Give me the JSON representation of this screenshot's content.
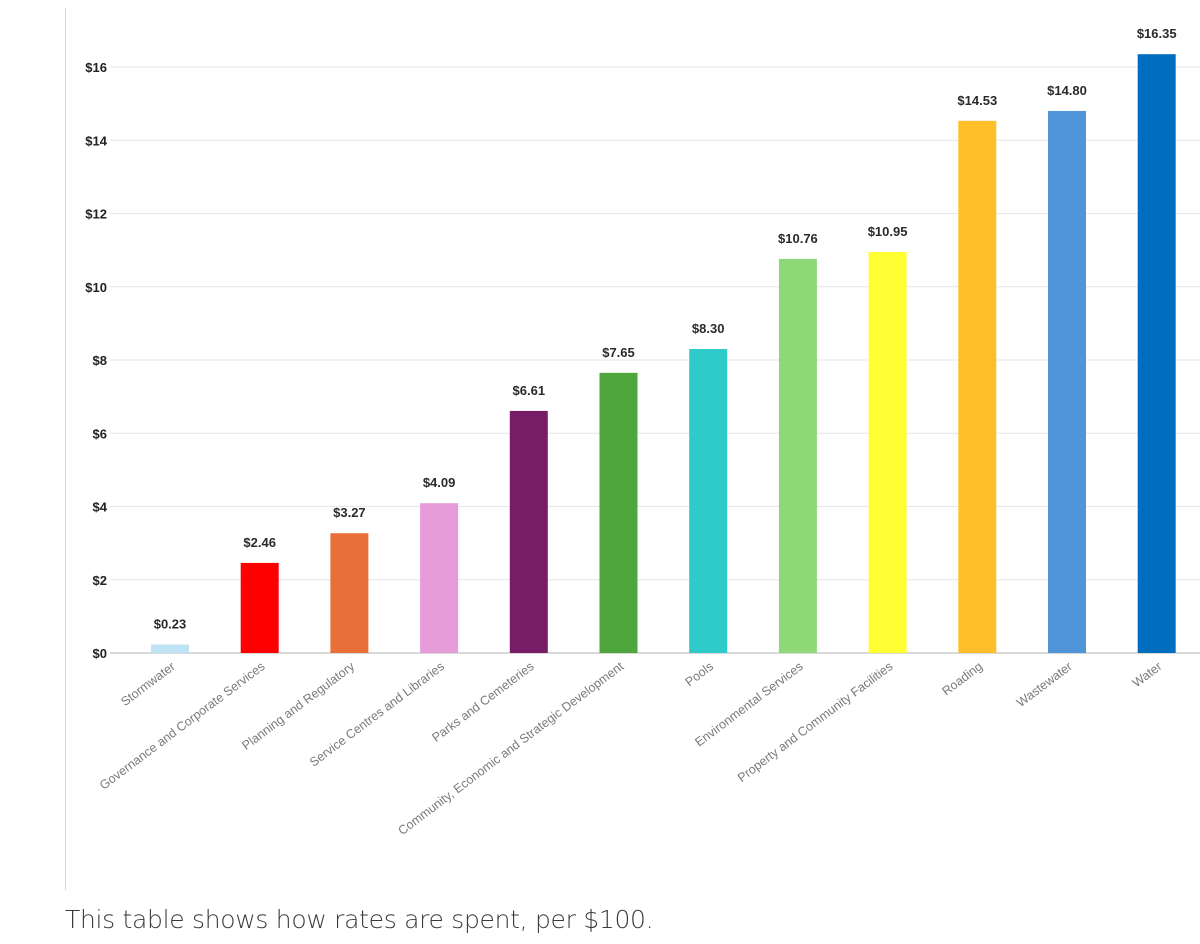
{
  "chart_data": {
    "type": "bar",
    "title": "",
    "xlabel": "",
    "ylabel": "",
    "ylim": [
      0,
      17
    ],
    "yticks": [
      0,
      2,
      4,
      6,
      8,
      10,
      12,
      14,
      16
    ],
    "ytick_labels": [
      "$0",
      "$2",
      "$4",
      "$6",
      "$8",
      "$10",
      "$12",
      "$14",
      "$16"
    ],
    "grid": true,
    "categories": [
      "Stormwater",
      "Governance and Corporate Services",
      "Planning and Regulatory",
      "Service Centres and Libraries",
      "Parks and Cemeteries",
      "Community, Economic and Strategic Development",
      "Pools",
      "Environmental Services",
      "Property and Community Facilities",
      "Roading",
      "Wastewater",
      "Water"
    ],
    "values": [
      0.23,
      2.46,
      3.27,
      4.09,
      6.61,
      7.65,
      8.3,
      10.76,
      10.95,
      14.53,
      14.8,
      16.35
    ],
    "data_labels": [
      "$0.23",
      "$2.46",
      "$3.27",
      "$4.09",
      "$6.61",
      "$7.65",
      "$8.30",
      "$10.76",
      "$10.95",
      "$14.53",
      "$14.80",
      "$16.35"
    ],
    "colors": [
      "#bde3f5",
      "#ff0000",
      "#e87038",
      "#e69cd8",
      "#761d66",
      "#4ea63c",
      "#2fcbcb",
      "#8ed878",
      "#ffff33",
      "#ffbf2a",
      "#4f95d8",
      "#006ebe"
    ]
  },
  "caption": "This table shows how rates are spent, per $100."
}
